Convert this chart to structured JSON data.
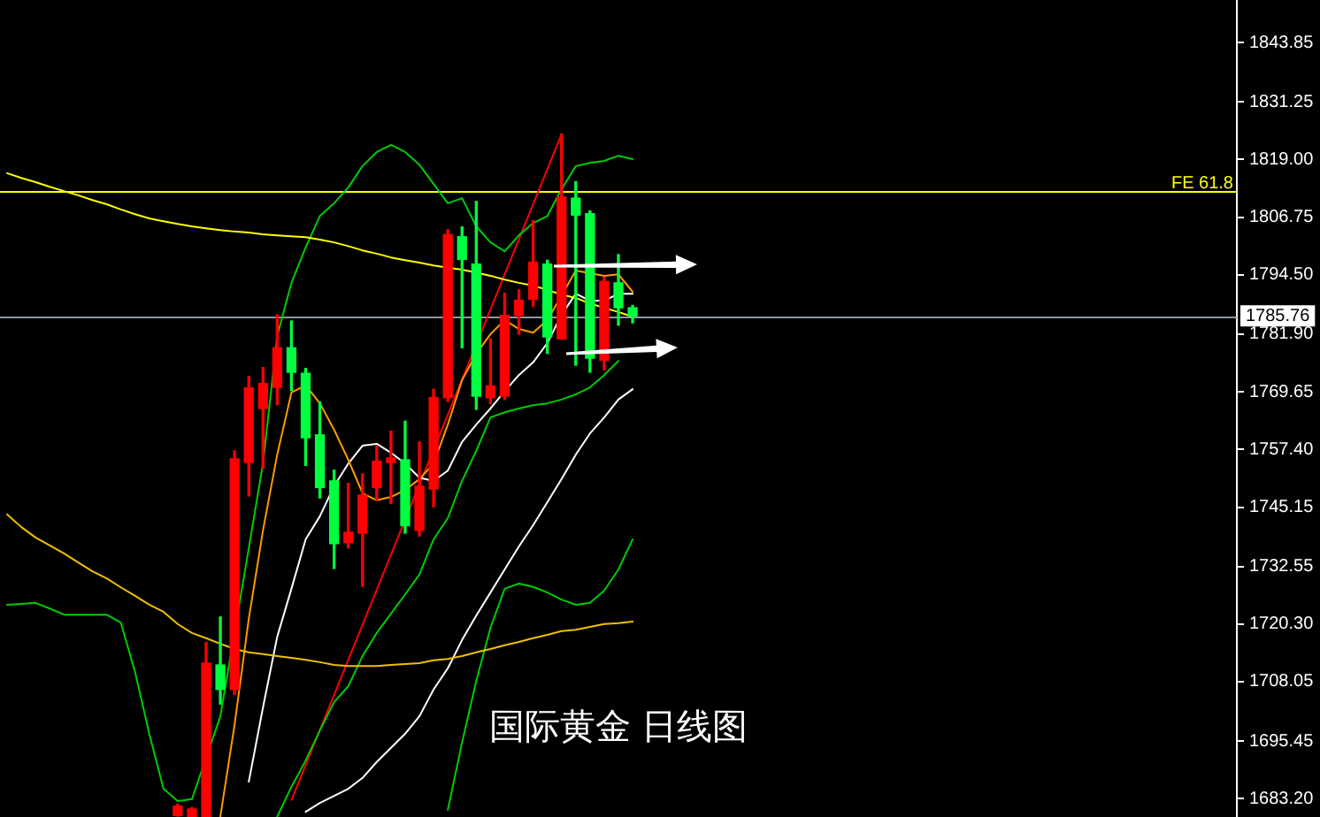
{
  "chart_data": {
    "type": "candlestick",
    "title": "国际黄金 日线图",
    "categories": [
      null,
      null,
      null,
      null,
      null,
      null,
      null,
      null,
      null,
      null,
      null,
      null,
      null,
      null,
      null,
      null,
      null,
      null,
      null,
      null,
      null,
      null,
      null,
      null,
      null,
      null,
      null,
      null,
      null,
      null,
      null,
      null,
      null,
      null,
      null,
      null,
      null,
      null,
      null,
      null,
      null,
      null,
      null,
      null,
      null,
      null,
      null,
      null,
      null,
      null,
      null,
      null,
      null,
      null,
      null,
      null,
      null,
      null,
      null,
      null,
      null,
      null,
      null,
      null,
      null,
      null,
      null,
      null,
      null,
      null,
      null,
      null,
      null,
      null,
      null,
      null,
      null,
      null,
      null,
      null,
      null,
      null,
      null,
      null,
      null,
      null,
      null
    ],
    "ohlc": [
      null,
      null,
      null,
      null,
      null,
      null,
      null,
      null,
      null,
      null,
      null,
      null,
      [
        1679.6,
        1682.0,
        1679.5,
        1681.6
      ],
      [
        1679.4,
        1681.3,
        1679.4,
        1681.0
      ],
      [
        1679.4,
        1716.4,
        1679.4,
        1712.0
      ],
      [
        1711.6,
        1721.8,
        1703.3,
        1706.4
      ],
      [
        1706.4,
        1757.1,
        1705.3,
        1755.4
      ],
      [
        1754.6,
        1772.9,
        1747.5,
        1770.5
      ],
      [
        1766.1,
        1774.8,
        1753.4,
        1771.4
      ],
      [
        1770.6,
        1786.0,
        1766.9,
        1779.0
      ],
      [
        1779.0,
        1784.7,
        1769.9,
        1773.8
      ],
      [
        1773.6,
        1774.6,
        1754.0,
        1759.9
      ],
      [
        1760.5,
        1767.5,
        1747.1,
        1749.3
      ],
      [
        1750.7,
        1753.0,
        1732.1,
        1737.4
      ],
      [
        1737.6,
        1750.2,
        1736.5,
        1739.8
      ],
      [
        1739.6,
        1752.2,
        1728.3,
        1747.7
      ],
      [
        1749.3,
        1758.1,
        1746.5,
        1754.9
      ],
      [
        1754.6,
        1761.3,
        1745.9,
        1755.6
      ],
      [
        1755.2,
        1763.4,
        1739.6,
        1741.2
      ],
      [
        1740.2,
        1759.0,
        1739.0,
        1749.6
      ],
      [
        1749.0,
        1770.2,
        1745.2,
        1768.4
      ],
      [
        1768.4,
        1804.1,
        1767.6,
        1803.1
      ],
      [
        1802.6,
        1804.7,
        1779.0,
        1797.8
      ],
      [
        1796.8,
        1810.1,
        1765.9,
        1768.7
      ],
      [
        1768.4,
        1780.9,
        1767.1,
        1770.9
      ],
      [
        1768.7,
        1790.6,
        1768.0,
        1785.9
      ],
      [
        1785.9,
        1791.3,
        1781.9,
        1789.1
      ],
      [
        1789.3,
        1806.0,
        1787.8,
        1797.2
      ],
      [
        1796.8,
        1797.6,
        1777.8,
        1781.3
      ],
      [
        1780.9,
        1824.4,
        1780.8,
        1811.0
      ],
      [
        1810.8,
        1814.3,
        1775.3,
        1807.2
      ],
      [
        1807.5,
        1808.1,
        1773.8,
        1776.8
      ],
      [
        1776.3,
        1794.0,
        1774.3,
        1793.1
      ],
      [
        1792.8,
        1798.8,
        1783.8,
        1787.5
      ],
      [
        1787.5,
        1788.0,
        1784.3,
        1785.76
      ],
      null,
      null,
      null,
      null,
      null,
      null,
      null,
      null,
      null,
      null,
      null,
      null,
      null,
      null,
      null,
      null,
      null,
      null,
      null,
      null,
      null,
      null,
      null,
      null,
      null,
      null,
      null,
      null,
      null,
      null,
      null,
      null,
      null,
      null,
      null,
      null,
      null,
      null,
      null,
      null,
      null,
      null
    ],
    "colors": [
      null,
      null,
      null,
      null,
      null,
      null,
      null,
      null,
      null,
      null,
      null,
      null,
      "#ff0000",
      "#ff0000",
      "#ff0000",
      "#00ff40",
      "#ff0000",
      "#ff0000",
      "#ff0000",
      "#ff0000",
      "#00ff40",
      "#00ff40",
      "#00ff40",
      "#00ff40",
      "#ff0000",
      "#ff0000",
      "#ff0000",
      "#ff0000",
      "#00ff40",
      "#ff0000",
      "#ff0000",
      "#ff0000",
      "#00ff40",
      "#00ff40",
      "#ff0000",
      "#ff0000",
      "#ff0000",
      "#ff0000",
      "#00ff40",
      "#ff0000",
      "#00ff40",
      "#00ff40",
      "#ff0000",
      "#00ff40",
      "#00ff40",
      null,
      null,
      null,
      null,
      null,
      null,
      null,
      null,
      null,
      null,
      null,
      null,
      null,
      null,
      null,
      null,
      null,
      null,
      null,
      null,
      null,
      null,
      null,
      null,
      null,
      null,
      null,
      null,
      null,
      null,
      null,
      null,
      null,
      null,
      null,
      null,
      null,
      null,
      null,
      null,
      null,
      null
    ],
    "series": [
      {
        "type": "line",
        "color": "#ffff00",
        "values": [
          1816.1,
          1815.1,
          1814.2,
          1813.2,
          1812.3,
          1811.4,
          1810.4,
          1809.5,
          1808.4,
          1807.4,
          1806.5,
          1805.9,
          1805.3,
          1804.8,
          1804.4,
          1804.0,
          1803.7,
          1803.5,
          1803.1,
          1802.9,
          1802.7,
          1802.5,
          1802.0,
          1801.4,
          1800.6,
          1799.7,
          1799.0,
          1798.2,
          1797.6,
          1797.1,
          1796.5,
          1796.0,
          1795.6,
          1795.0,
          1794.3,
          1793.5,
          1792.8,
          1792.2,
          1791.3,
          1790.3,
          1789.6,
          1788.4,
          1787.5,
          1786.6,
          1785.6,
          null,
          null,
          null,
          null,
          null,
          null,
          null,
          null,
          null,
          null,
          null,
          null,
          null,
          null,
          null,
          null,
          null,
          null,
          null,
          null,
          null,
          null,
          null,
          null,
          null,
          null,
          null,
          null,
          null,
          null,
          null,
          null,
          null,
          null,
          null,
          null,
          null,
          null,
          null,
          null,
          null,
          null
        ]
      },
      {
        "type": "line",
        "color": "#f0c000",
        "values": [
          1743.6,
          1740.9,
          1738.7,
          1737.0,
          1735.3,
          1733.4,
          1731.5,
          1730.0,
          1728.1,
          1726.3,
          1724.4,
          1722.9,
          1720.3,
          1718.4,
          1717.3,
          1716.1,
          1715.0,
          1714.3,
          1713.9,
          1713.5,
          1713.1,
          1712.7,
          1712.2,
          1711.6,
          1711.4,
          1711.4,
          1711.4,
          1711.6,
          1711.8,
          1712.0,
          1712.6,
          1712.9,
          1713.5,
          1714.3,
          1715.0,
          1715.8,
          1716.5,
          1717.3,
          1718.0,
          1718.8,
          1719.1,
          1719.7,
          1720.3,
          1720.5,
          1720.8,
          null,
          null,
          null,
          null,
          null,
          null,
          null,
          null,
          null,
          null,
          null,
          null,
          null,
          null,
          null,
          null,
          null,
          null,
          null,
          null,
          null,
          null,
          null,
          null,
          null,
          null,
          null,
          null,
          null,
          null,
          null,
          null,
          null,
          null,
          null,
          null,
          null,
          null,
          null,
          null,
          null,
          null
        ]
      },
      {
        "type": "line",
        "color": "#00cc00",
        "values": [
          1724.4,
          1724.6,
          1724.8,
          1723.6,
          1722.3,
          1722.3,
          1722.3,
          1722.3,
          1720.6,
          1710.1,
          1697.0,
          1685.3,
          1682.7,
          1683.1,
          null,
          1700.7,
          null,
          1736.4,
          1754.4,
          1781.5,
          1792.8,
          1800.3,
          1807.0,
          1809.7,
          1813.1,
          1817.6,
          1820.6,
          1822.1,
          1820.6,
          1817.9,
          1813.8,
          1809.7,
          1810.8,
          1804.8,
          1801.4,
          1799.5,
          1802.9,
          1805.5,
          1807.0,
          1812.7,
          1817.6,
          1818.3,
          1818.7,
          1819.8,
          1819.1,
          null,
          null,
          null,
          null,
          null,
          null,
          null,
          null,
          null,
          null,
          null,
          null,
          null,
          null,
          null,
          null,
          null,
          null,
          null,
          null,
          null,
          null,
          null,
          null,
          null,
          null,
          null,
          null,
          null,
          null,
          null,
          null,
          null,
          null,
          null,
          null,
          null,
          null,
          null,
          null,
          null,
          null
        ]
      },
      {
        "type": "line",
        "color": "#00cc00",
        "values": [
          null,
          null,
          null,
          null,
          null,
          null,
          null,
          null,
          null,
          null,
          null,
          null,
          null,
          null,
          null,
          null,
          null,
          null,
          null,
          1679.4,
          1685.7,
          1691.3,
          1697.7,
          1703.7,
          1707.1,
          1713.5,
          1718.4,
          1722.5,
          1726.6,
          1730.8,
          1738.3,
          1742.8,
          1750.7,
          1757.1,
          1764.2,
          1765.3,
          1766.1,
          1766.8,
          1767.2,
          1768.0,
          1769.1,
          1770.6,
          1773.2,
          1776.2,
          null,
          null,
          null,
          null,
          null,
          null,
          null,
          null,
          null,
          null,
          null,
          null,
          null,
          null,
          null,
          null,
          null,
          null,
          null,
          null,
          null,
          null,
          null,
          null,
          null,
          null,
          null,
          null,
          null,
          null,
          null,
          null,
          null,
          null,
          null,
          null,
          null,
          null,
          null,
          null,
          null,
          null,
          null
        ]
      },
      {
        "type": "line",
        "color": "#00cc00",
        "values": [
          null,
          null,
          null,
          null,
          null,
          null,
          null,
          null,
          null,
          null,
          null,
          null,
          null,
          null,
          null,
          null,
          null,
          null,
          null,
          null,
          null,
          null,
          null,
          null,
          null,
          null,
          null,
          null,
          null,
          null,
          null,
          1680.8,
          1695.1,
          1708.2,
          1719.5,
          1727.8,
          1728.9,
          1728.2,
          1727.0,
          1725.5,
          1724.4,
          1724.8,
          1727.4,
          1731.9,
          1738.3,
          null,
          null,
          null,
          null,
          null,
          null,
          null,
          null,
          null,
          null,
          null,
          null,
          null,
          null,
          null,
          null,
          null,
          null,
          null,
          null,
          null,
          null,
          null,
          null,
          null,
          null,
          null,
          null,
          null,
          null,
          null,
          null,
          null,
          null,
          null,
          null,
          null,
          null,
          null,
          null,
          null,
          null
        ]
      },
      {
        "type": "line",
        "color": "#ff9a00",
        "values": [
          null,
          null,
          null,
          null,
          null,
          null,
          null,
          null,
          null,
          null,
          null,
          null,
          null,
          null,
          null,
          1679.4,
          1698.9,
          1721.4,
          1740.2,
          1756.3,
          1769.5,
          1771.0,
          1767.2,
          1761.6,
          1755.2,
          1748.1,
          1746.6,
          1747.3,
          1748.8,
          1751.1,
          1754.4,
          1762.7,
          1772.1,
          1777.7,
          1781.9,
          1784.9,
          1783.0,
          1782.2,
          1784.9,
          1790.1,
          1795.4,
          null,
          1794.3,
          1794.6,
          1790.9,
          null,
          null,
          null,
          null,
          null,
          null,
          null,
          null,
          null,
          null,
          null,
          null,
          null,
          null,
          null,
          null,
          null,
          null,
          null,
          null,
          null,
          null,
          null,
          null,
          null,
          null,
          null,
          null,
          null,
          null,
          null,
          null,
          null,
          null,
          null,
          null,
          null,
          null,
          null,
          null,
          null,
          null
        ]
      },
      {
        "type": "line",
        "color": "#ffffff",
        "values": [
          null,
          null,
          null,
          null,
          null,
          null,
          null,
          null,
          null,
          null,
          null,
          null,
          null,
          null,
          null,
          null,
          null,
          1686.8,
          1702.6,
          1717.6,
          1727.8,
          1738.3,
          1743.2,
          1749.6,
          1754.4,
          1758.2,
          1758.6,
          1756.7,
          1754.4,
          1751.4,
          1750.7,
          1752.9,
          1759.0,
          1762.7,
          1766.1,
          1769.8,
          1773.2,
          1775.9,
          1780.0,
          1786.0,
          1790.5,
          1789.0,
          1789.0,
          1790.5,
          1790.5,
          null,
          null,
          null,
          null,
          null,
          null,
          null,
          null,
          null,
          null,
          null,
          null,
          null,
          null,
          null,
          null,
          null,
          null,
          null,
          null,
          null,
          null,
          null,
          null,
          null,
          null,
          null,
          null,
          null,
          null,
          null,
          null,
          null,
          null,
          null,
          null,
          null,
          null,
          null,
          null,
          null,
          null
        ]
      },
      {
        "type": "line",
        "color": "#ffffff",
        "values": [
          null,
          null,
          null,
          null,
          null,
          null,
          null,
          null,
          null,
          null,
          null,
          null,
          null,
          null,
          null,
          null,
          null,
          null,
          null,
          null,
          null,
          1680.4,
          1682.3,
          1683.8,
          1685.3,
          1687.6,
          1691.0,
          1694.0,
          1697.0,
          1700.7,
          1706.4,
          1710.9,
          1716.9,
          1722.1,
          1727.0,
          1731.9,
          1736.8,
          1741.3,
          1746.2,
          1751.1,
          1756.3,
          1760.8,
          1764.2,
          1768.0,
          1770.2,
          null,
          null,
          null,
          null,
          null,
          null,
          null,
          null,
          null,
          null,
          null,
          null,
          null,
          null,
          null,
          null,
          null,
          null,
          null,
          null,
          null,
          null,
          null,
          null,
          null,
          null,
          null,
          null,
          null,
          null,
          null,
          null,
          null,
          null,
          null,
          null,
          null,
          null,
          null,
          null,
          null,
          null
        ]
      },
      {
        "type": "line",
        "color": "#ff0000",
        "values": [
          null,
          null,
          null,
          null,
          null,
          null,
          null,
          null,
          null,
          null,
          null,
          null,
          null,
          null,
          null,
          null,
          null,
          null,
          null,
          null,
          1682.9,
          null,
          null,
          null,
          null,
          null,
          null,
          null,
          null,
          null,
          null,
          null,
          null,
          null,
          null,
          null,
          null,
          null,
          null,
          1824.4,
          null,
          null,
          null,
          null,
          null,
          null,
          null,
          null,
          null,
          null,
          null,
          null,
          null,
          null,
          null,
          null,
          null,
          null,
          null,
          null,
          null,
          null,
          null,
          null,
          null,
          null,
          null,
          null,
          null,
          null,
          null,
          null,
          null,
          null,
          null,
          null,
          null,
          null,
          null,
          null,
          null,
          null,
          null,
          null,
          null,
          null,
          null
        ]
      }
    ],
    "ref_lines": [
      {
        "axis": "y",
        "value": 1812.2,
        "label": "FE 61.8",
        "color": "#ffff00"
      },
      {
        "axis": "y",
        "value": 1785.76,
        "label": "1785.76",
        "color": "#8c98a4"
      }
    ],
    "ylim": [
      1679.3,
      1852.9
    ],
    "yticks": [
      1843.85,
      1831.25,
      {
        "value": 1819,
        "label": "1819.00"
      },
      1806.75,
      {
        "value": 1794.5,
        "label": "1794.50"
      },
      {
        "value": 1781.9,
        "label": "1781.90"
      },
      1769.65,
      {
        "value": 1757.4,
        "label": "1757.40"
      },
      1745.15,
      1732.55,
      {
        "value": 1720.3,
        "label": "1720.30"
      },
      1708.05,
      1695.45,
      {
        "value": 1683.2,
        "label": "1683.20"
      }
    ],
    "tick_labels": "y"
  }
}
